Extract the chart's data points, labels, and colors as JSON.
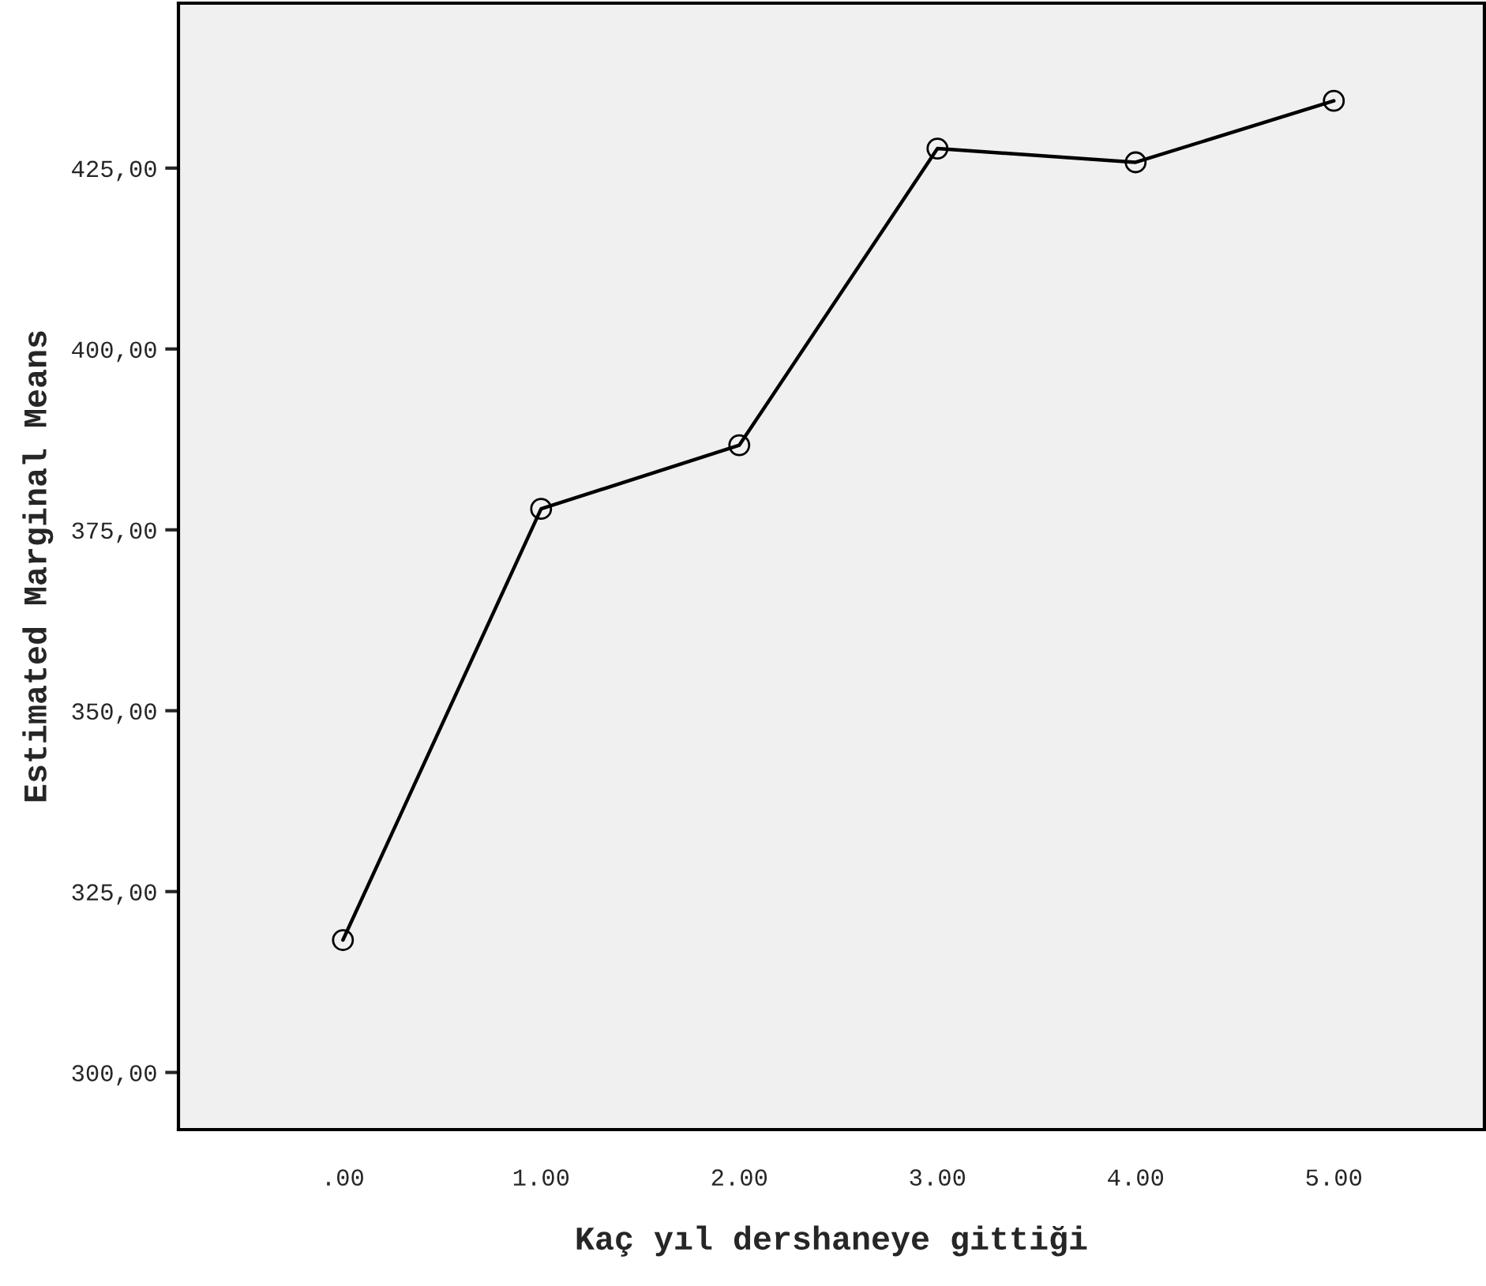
{
  "chart_data": {
    "type": "line",
    "xlabel": "Kaç yıl dershaneye gittiği",
    "ylabel": "Estimated Marginal Means",
    "categories": [
      ".00",
      "1.00",
      "2.00",
      "3.00",
      "4.00",
      "5.00"
    ],
    "series": [
      {
        "color": "#000000",
        "values": [
          318.3,
          377.9,
          386.7,
          427.7,
          425.8,
          434.3
        ]
      }
    ],
    "ylim": [
      292.1,
      447.8
    ],
    "yticks": [
      {
        "value": 300,
        "label": "300,00"
      },
      {
        "value": 325,
        "label": "325,00"
      },
      {
        "value": 350,
        "label": "350,00"
      },
      {
        "value": 375,
        "label": "375,00"
      },
      {
        "value": 400,
        "label": "400,00"
      },
      {
        "value": 425,
        "label": "425,00"
      }
    ],
    "marker": "circle",
    "line_style": "solid",
    "grid": false,
    "legend": false
  }
}
